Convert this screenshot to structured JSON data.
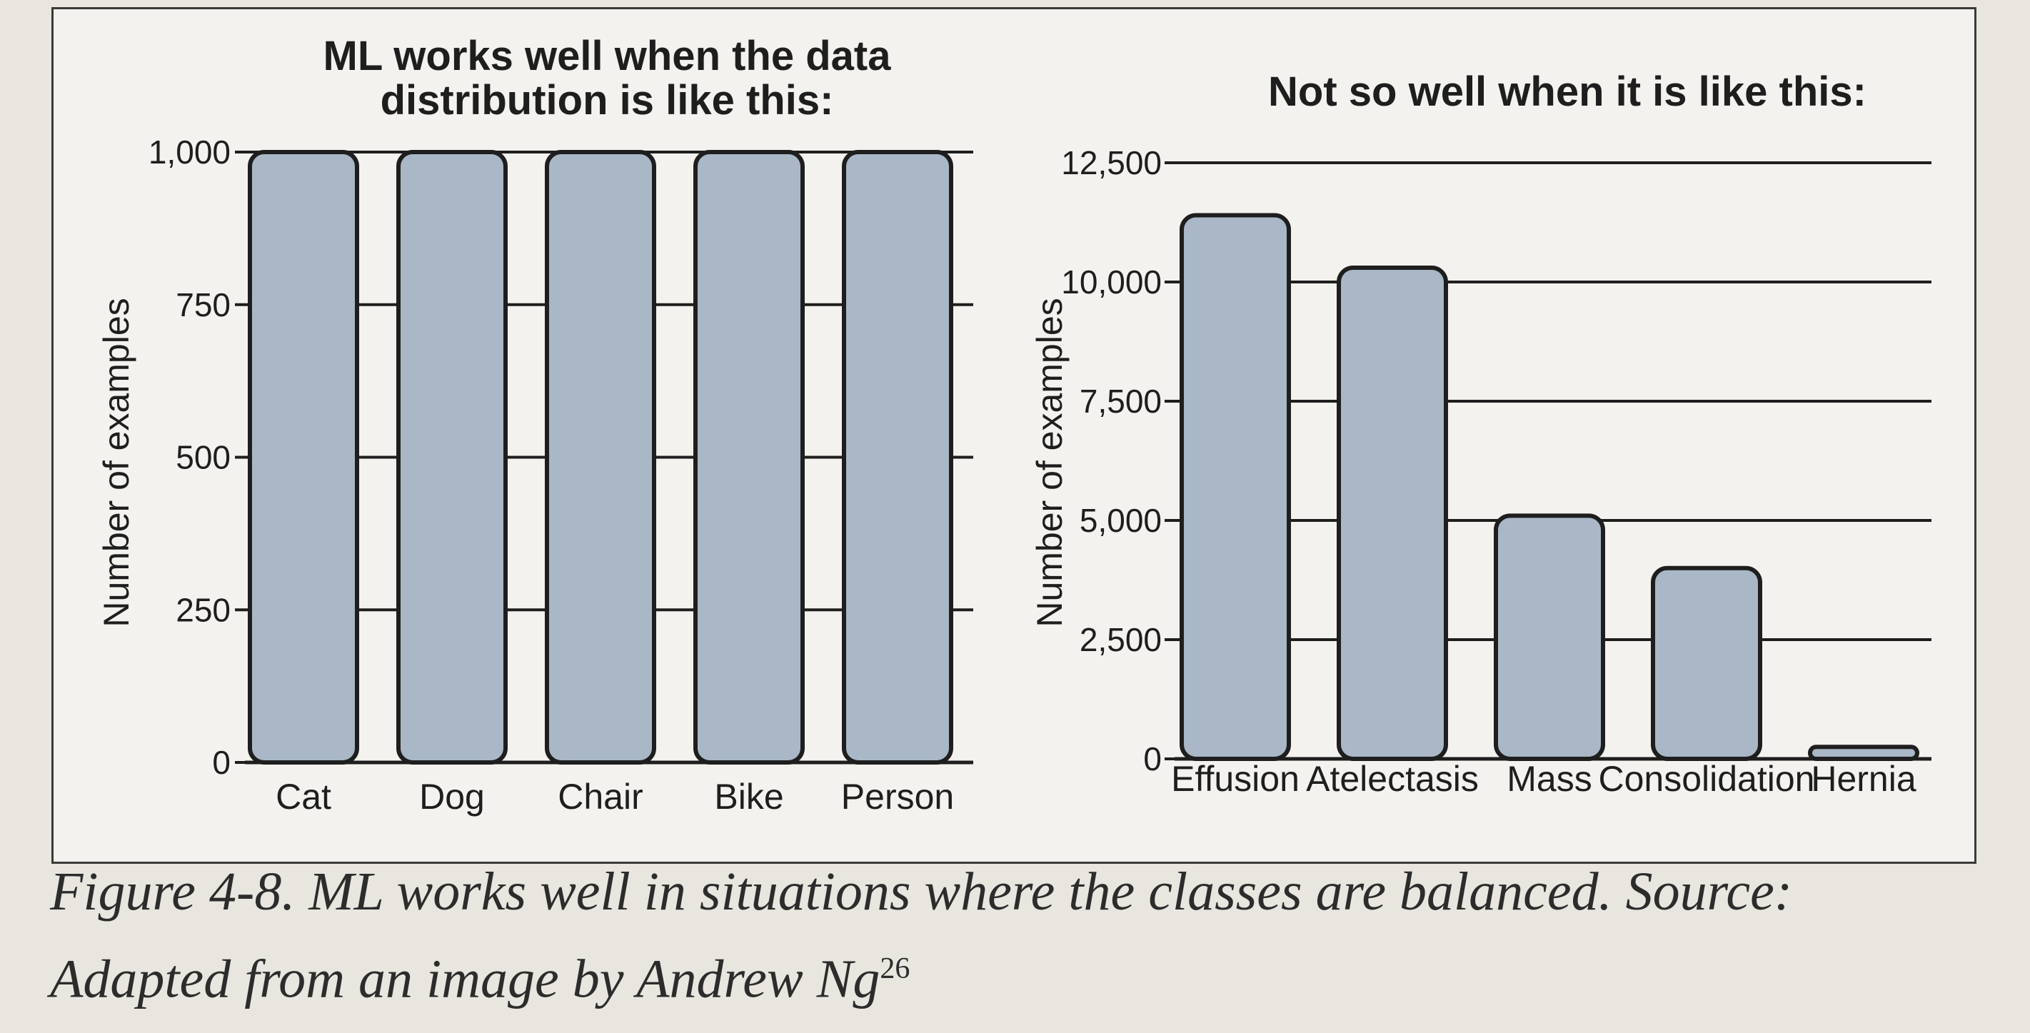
{
  "chart_data": [
    {
      "type": "bar",
      "title": "ML works well when the data distribution is like this:",
      "title_lines": [
        "ML works well when the data",
        "distribution is like this:"
      ],
      "xlabel": "",
      "ylabel": "Number of examples",
      "categories": [
        "Cat",
        "Dog",
        "Chair",
        "Bike",
        "Person"
      ],
      "values": [
        1000,
        1000,
        1000,
        1000,
        1000
      ],
      "ylim": [
        0,
        1000
      ],
      "yticks": [
        0,
        250,
        500,
        750,
        1000
      ],
      "ytick_labels": [
        "0",
        "250",
        "500",
        "750",
        "1,000"
      ],
      "grid": true
    },
    {
      "type": "bar",
      "title": "Not so well when it is like this:",
      "title_lines": [
        "Not so well when it is like this:"
      ],
      "xlabel": "",
      "ylabel": "Number of examples",
      "categories": [
        "Effusion",
        "Atelectasis",
        "Mass",
        "Consolidation",
        "Hernia"
      ],
      "values": [
        11400,
        10300,
        5100,
        4000,
        250
      ],
      "ylim": [
        0,
        12500
      ],
      "yticks": [
        0,
        2500,
        5000,
        7500,
        10000,
        12500
      ],
      "ytick_labels": [
        "0",
        "2,500",
        "5,000",
        "7,500",
        "10,000",
        "12,500"
      ],
      "grid": true
    }
  ],
  "caption": {
    "text": "Figure 4-8. ML works well in situations where the classes are balanced. Source: Adapted from an image by Andrew Ng",
    "footnote": "26"
  },
  "colors": {
    "bar_fill": "#a9b7c6",
    "bar_stroke": "#1e1e1e",
    "grid_line": "#1e1e1e",
    "text": "#1e1e1e"
  }
}
